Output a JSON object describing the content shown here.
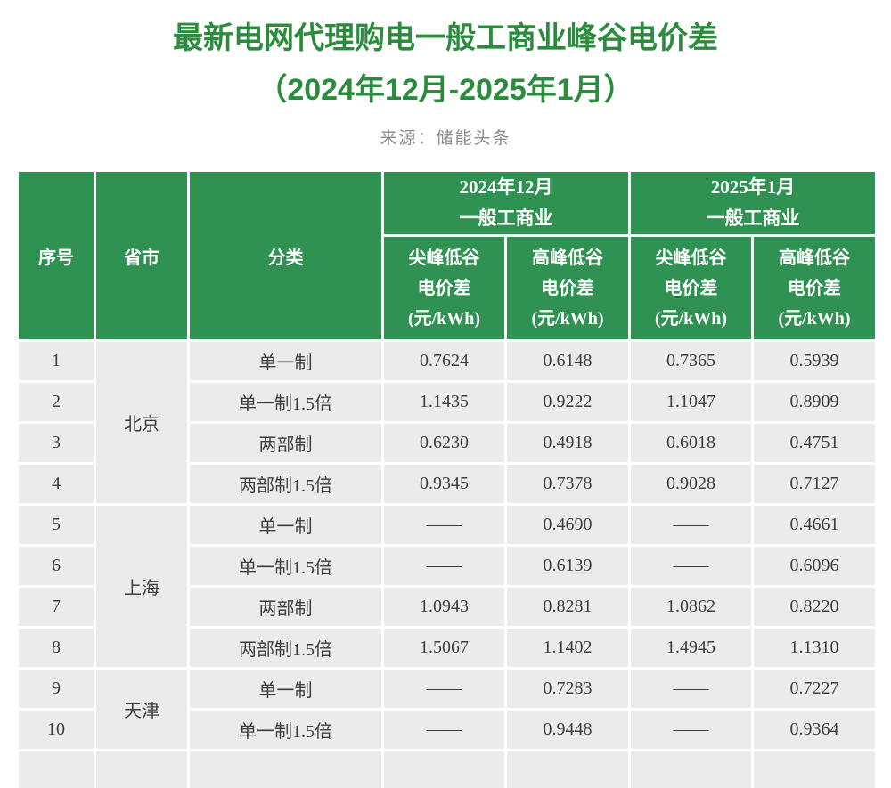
{
  "page": {
    "title_line1": "最新电网代理购电一般工商业峰谷电价差",
    "title_line2": "（2024年12月-2025年1月）",
    "source": "来源：储能头条"
  },
  "colors": {
    "title_green": "#2b8c3e",
    "header_green": "#2f9152",
    "row_gray": "#ebebeb",
    "body_text": "#3d3d3d",
    "source_gray": "#8a8a8a"
  },
  "chart_data": {
    "type": "table",
    "title": "最新电网代理购电一般工商业峰谷电价差（2024年12月-2025年1月）",
    "source": "来源：储能头条",
    "unit": "元/kWh",
    "header": {
      "seq": "序号",
      "region": "省市",
      "category": "分类",
      "groups": [
        {
          "line1": "2024年12月",
          "line2": "一般工商业"
        },
        {
          "line1": "2025年1月",
          "line2": "一般工商业"
        }
      ],
      "sub": [
        {
          "line1": "尖峰低谷",
          "line2": "电价差",
          "line3": "(元/kWh)"
        },
        {
          "line1": "高峰低谷",
          "line2": "电价差",
          "line3": "(元/kWh)"
        },
        {
          "line1": "尖峰低谷",
          "line2": "电价差",
          "line3": "(元/kWh)"
        },
        {
          "line1": "高峰低谷",
          "line2": "电价差",
          "line3": "(元/kWh)"
        }
      ]
    },
    "rows": [
      {
        "seq": "1",
        "region": "北京",
        "region_span": 4,
        "category": "单一制",
        "values": [
          "0.7624",
          "0.6148",
          "0.7365",
          "0.5939"
        ]
      },
      {
        "seq": "2",
        "category": "单一制1.5倍",
        "values": [
          "1.1435",
          "0.9222",
          "1.1047",
          "0.8909"
        ]
      },
      {
        "seq": "3",
        "category": "两部制",
        "values": [
          "0.6230",
          "0.4918",
          "0.6018",
          "0.4751"
        ]
      },
      {
        "seq": "4",
        "category": "两部制1.5倍",
        "values": [
          "0.9345",
          "0.7378",
          "0.9028",
          "0.7127"
        ]
      },
      {
        "seq": "5",
        "region": "上海",
        "region_span": 4,
        "category": "单一制",
        "values": [
          "——",
          "0.4690",
          "——",
          "0.4661"
        ]
      },
      {
        "seq": "6",
        "category": "单一制1.5倍",
        "values": [
          "——",
          "0.6139",
          "——",
          "0.6096"
        ]
      },
      {
        "seq": "7",
        "category": "两部制",
        "values": [
          "1.0943",
          "0.8281",
          "1.0862",
          "0.8220"
        ]
      },
      {
        "seq": "8",
        "category": "两部制1.5倍",
        "values": [
          "1.5067",
          "1.1402",
          "1.4945",
          "1.1310"
        ]
      },
      {
        "seq": "9",
        "region": "天津",
        "region_span": 2,
        "category": "单一制",
        "values": [
          "——",
          "0.7283",
          "——",
          "0.7227"
        ]
      },
      {
        "seq": "10",
        "category": "单一制1.5倍",
        "values": [
          "——",
          "0.9448",
          "——",
          "0.9364"
        ]
      },
      {
        "seq": "",
        "region": "",
        "region_span": 1,
        "category": "",
        "values": [
          "",
          "",
          "",
          ""
        ]
      }
    ]
  }
}
